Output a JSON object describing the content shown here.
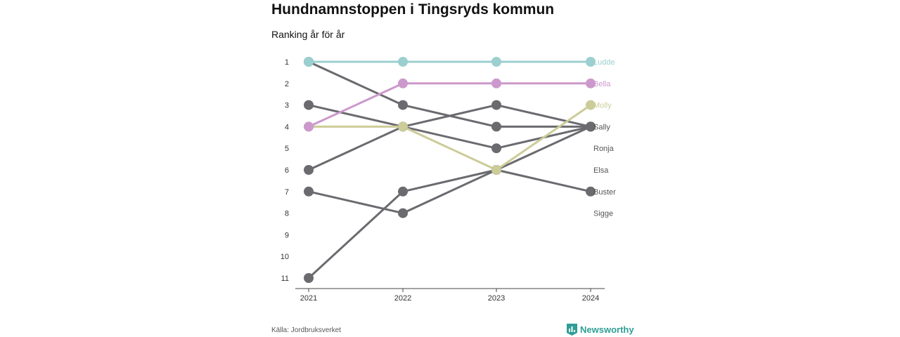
{
  "chart_data": {
    "type": "line",
    "title": "Hundnamnstoppen i Tingsryds kommun",
    "subtitle": "Ranking år för år",
    "x": [
      "2021",
      "2022",
      "2023",
      "2024"
    ],
    "y_ticks": [
      "1",
      "2",
      "3",
      "4",
      "5",
      "6",
      "7",
      "8",
      "9",
      "10",
      "11"
    ],
    "ylim": [
      1,
      11
    ],
    "y_reversed": true,
    "grid": false,
    "colors": {
      "default": "#6b6a6f",
      "Ludde": "#9ccfcf",
      "Bella": "#cc99cc",
      "Molly": "#cccc99"
    },
    "series": [
      {
        "name": "Sally",
        "values": [
          1,
          3,
          4,
          4
        ]
      },
      {
        "name": "Ronja",
        "values": [
          3,
          4,
          5,
          4
        ]
      },
      {
        "name": "Elsa",
        "values": [
          6,
          4,
          3,
          4
        ]
      },
      {
        "name": "Buster",
        "values": [
          7,
          8,
          6,
          7
        ]
      },
      {
        "name": "Sigge",
        "values": [
          11,
          7,
          6,
          4
        ]
      },
      {
        "name": "Molly",
        "values": [
          4,
          4,
          6,
          3
        ]
      },
      {
        "name": "Bella",
        "values": [
          4,
          2,
          2,
          2
        ]
      },
      {
        "name": "Ludde",
        "values": [
          1,
          1,
          1,
          1
        ]
      }
    ],
    "end_labels": [
      {
        "name": "Ludde",
        "rank": 1,
        "color": "#9ccfcf"
      },
      {
        "name": "Bella",
        "rank": 2,
        "color": "#cc99cc"
      },
      {
        "name": "Molly",
        "rank": 3,
        "color": "#cccc99"
      },
      {
        "name": "Sally",
        "rank": 4,
        "color": "#555555"
      },
      {
        "name": "Ronja",
        "rank": 5,
        "color": "#555555"
      },
      {
        "name": "Elsa",
        "rank": 6,
        "color": "#555555"
      },
      {
        "name": "Buster",
        "rank": 7,
        "color": "#555555"
      },
      {
        "name": "Sigge",
        "rank": 8,
        "color": "#555555"
      }
    ]
  },
  "footer": {
    "source": "Källa: Jordbruksverket",
    "brand": "Newsworthy"
  }
}
